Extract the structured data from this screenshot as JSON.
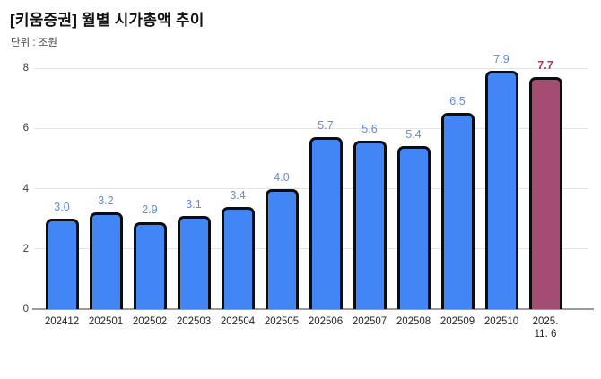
{
  "header": {
    "title": "[키움증권] 월별 시가총액 추이",
    "unit": "단위 : 조원"
  },
  "chart_data": {
    "type": "bar",
    "title": "[키움증권] 월별 시가총액 추이",
    "unit_label": "단위 : 조원",
    "categories": [
      "202412",
      "202501",
      "202502",
      "202503",
      "202504",
      "202505",
      "202506",
      "202507",
      "202508",
      "202509",
      "202510",
      "2025.\n11. 6"
    ],
    "values": [
      3.0,
      3.2,
      2.9,
      3.1,
      3.4,
      4.0,
      5.7,
      5.6,
      5.4,
      6.5,
      7.9,
      7.7
    ],
    "value_labels": [
      "3.0",
      "3.2",
      "2.9",
      "3.1",
      "3.4",
      "4.0",
      "5.7",
      "5.6",
      "5.4",
      "6.5",
      "7.9",
      "7.7"
    ],
    "highlight_index": 11,
    "xlabel": "",
    "ylabel": "",
    "ylim": [
      0,
      8
    ],
    "yticks": [
      0,
      2,
      4,
      6,
      8
    ],
    "grid": true,
    "legend": "none",
    "colors": {
      "bar_fill": "#4285f4",
      "bar_border": "#0d0d0d",
      "highlight_fill": "#a34d73",
      "value_label": "#5d8ce1",
      "highlight_value_label": "#a53a63",
      "gridline": "#e4e4e4",
      "baseline": "#9b9b9b",
      "axis_text": "#3c3c3c"
    }
  }
}
